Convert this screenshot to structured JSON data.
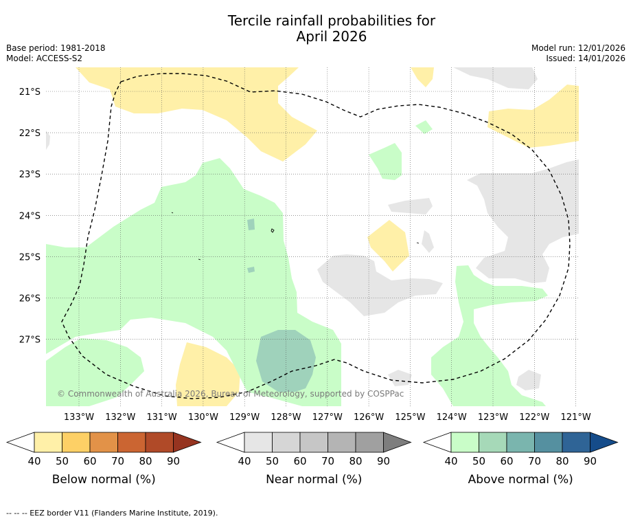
{
  "title_line1": "Tercile rainfall probabilities for",
  "title_line2": "April 2026",
  "base_period": "Base period: 1981-2018",
  "model": "Model: ACCESS-S2",
  "model_run": "Model run: 12/01/2026",
  "issued": "Issued: 14/01/2026",
  "copyright": "© Commonwealth of Australia 2026, Bureau of Meteorology, supported by COSPPac",
  "lat_labels": [
    "21°S",
    "22°S",
    "23°S",
    "24°S",
    "25°S",
    "26°S",
    "27°S"
  ],
  "lon_labels": [
    "133°W",
    "132°W",
    "131°W",
    "130°W",
    "129°W",
    "128°W",
    "127°W",
    "126°W",
    "125°W",
    "124°W",
    "123°W",
    "122°W",
    "121°W"
  ],
  "colorbars": [
    {
      "title": "Below normal (%)",
      "ticks": [
        "40",
        "50",
        "60",
        "70",
        "80",
        "90"
      ],
      "colors": [
        "#ffffff",
        "#fff0a8",
        "#fdd066",
        "#e29248",
        "#cb6532",
        "#b04a28",
        "#963420"
      ]
    },
    {
      "title": "Near normal (%)",
      "ticks": [
        "40",
        "50",
        "60",
        "70",
        "80",
        "90"
      ],
      "colors": [
        "#ffffff",
        "#e6e6e6",
        "#d6d6d6",
        "#c6c6c6",
        "#b4b4b4",
        "#a0a0a0",
        "#7e7e7e"
      ]
    },
    {
      "title": "Above normal (%)",
      "ticks": [
        "40",
        "50",
        "60",
        "70",
        "80",
        "90"
      ],
      "colors": [
        "#ffffff",
        "#c9fdc8",
        "#a6d9b8",
        "#7ab5ae",
        "#5590a0",
        "#2f6496",
        "#154c8a"
      ]
    }
  ],
  "footer": "--  --  -- EEZ border V11 (Flanders Marine Institute, 2019).",
  "region_colors": {
    "below50": "#fff0a8",
    "near50": "#e6e6e6",
    "above50": "#c9fdc8",
    "above60": "#9fd2bb"
  }
}
